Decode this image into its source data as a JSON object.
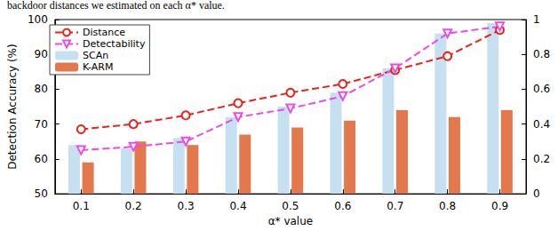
{
  "chart_data": {
    "type": "bar",
    "caption": "backdoor distances we estimated on each α* value.",
    "x_label": "α* value",
    "y_label": "Detection Accuracy (%)",
    "categories": [
      "0.1",
      "0.2",
      "0.3",
      "0.4",
      "0.5",
      "0.6",
      "0.7",
      "0.8",
      "0.9"
    ],
    "series": [
      {
        "name": "Distance",
        "type": "line",
        "axis": "y2",
        "color": "#e8231a",
        "marker": "circle",
        "line_style": "dashed",
        "values": [
          0.37,
          0.4,
          0.45,
          0.52,
          0.58,
          0.63,
          0.71,
          0.79,
          0.94
        ]
      },
      {
        "name": "Detectability",
        "type": "line",
        "axis": "y2",
        "color": "#e94be9",
        "marker": "triangle-down",
        "line_style": "dashed",
        "values": [
          0.25,
          0.27,
          0.3,
          0.44,
          0.49,
          0.56,
          0.72,
          0.92,
          0.96
        ]
      },
      {
        "name": "SCAn",
        "type": "bar",
        "color": "#c6e0f2",
        "values": [
          64,
          63,
          66,
          72,
          75,
          79,
          86,
          96,
          99
        ]
      },
      {
        "name": "K-ARM",
        "type": "bar",
        "color": "#e2784c",
        "values": [
          59,
          65,
          64,
          67,
          69,
          71,
          74,
          72,
          74
        ]
      }
    ],
    "ylim": [
      50,
      100
    ],
    "yticks": [
      50,
      60,
      70,
      80,
      90,
      100
    ],
    "y2lim": [
      0,
      1
    ],
    "y2ticks": [
      0,
      0.2,
      0.4,
      0.6,
      0.8,
      1
    ],
    "legend": "upper left",
    "grid": false
  }
}
